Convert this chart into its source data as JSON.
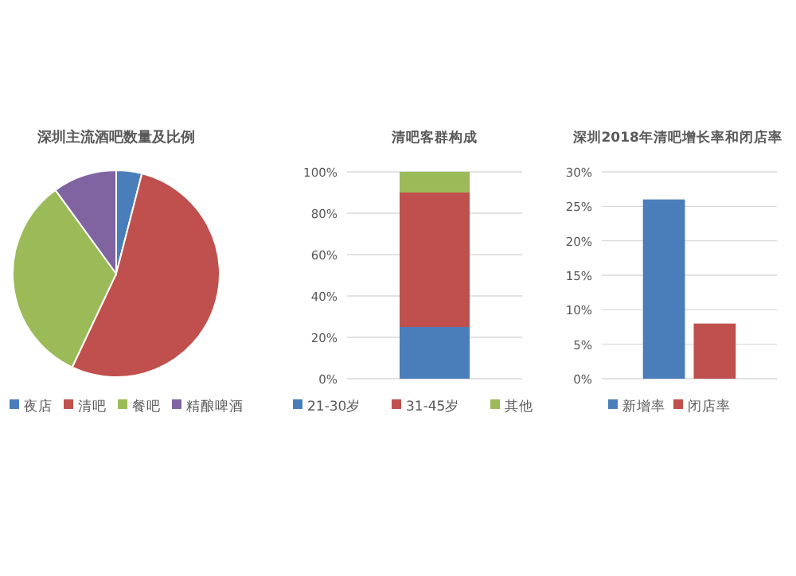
{
  "chart_data": [
    {
      "type": "pie",
      "title": "深圳主流酒吧数量及比例",
      "categories": [
        "夜店",
        "清吧",
        "餐吧",
        "精酿啤酒"
      ],
      "values": [
        4,
        53,
        33,
        10
      ],
      "colors": [
        "#4a7ebb",
        "#c0504d",
        "#9bbb59",
        "#8064a2"
      ],
      "legend": "bottom"
    },
    {
      "type": "bar",
      "title": "清吧客群构成",
      "categories": [
        null
      ],
      "stacked": true,
      "grid": "y",
      "legend": "bottom",
      "ylim": [
        0,
        100
      ],
      "yticks": [
        {
          "value": 0,
          "label": "0%"
        },
        {
          "value": 20,
          "label": "20%"
        },
        {
          "value": 40,
          "label": "40%"
        },
        {
          "value": 60,
          "label": "60%"
        },
        {
          "value": 80,
          "label": "80%"
        },
        {
          "value": 100,
          "label": "100%"
        }
      ],
      "series": [
        {
          "name": "21-30岁",
          "color": "#4a7ebb",
          "values": [
            25
          ]
        },
        {
          "name": "31-45岁",
          "color": "#c0504d",
          "values": [
            65
          ]
        },
        {
          "name": "其他",
          "color": "#9bbb59",
          "values": [
            10
          ]
        }
      ]
    },
    {
      "type": "bar",
      "title": "深圳2018年清吧增长率和闭店率",
      "categories": [
        null
      ],
      "grid": "y",
      "legend": "bottom",
      "ylim": [
        0,
        30
      ],
      "yticks": [
        {
          "value": 0,
          "label": "0%"
        },
        {
          "value": 5,
          "label": "5%"
        },
        {
          "value": 10,
          "label": "10%"
        },
        {
          "value": 15,
          "label": "15%"
        },
        {
          "value": 20,
          "label": "20%"
        },
        {
          "value": 25,
          "label": "25%"
        },
        {
          "value": 30,
          "label": "30%"
        }
      ],
      "series": [
        {
          "name": "新增率",
          "color": "#4a7ebb",
          "values": [
            26
          ]
        },
        {
          "name": "闭店率",
          "color": "#c0504d",
          "values": [
            8
          ]
        }
      ]
    }
  ]
}
